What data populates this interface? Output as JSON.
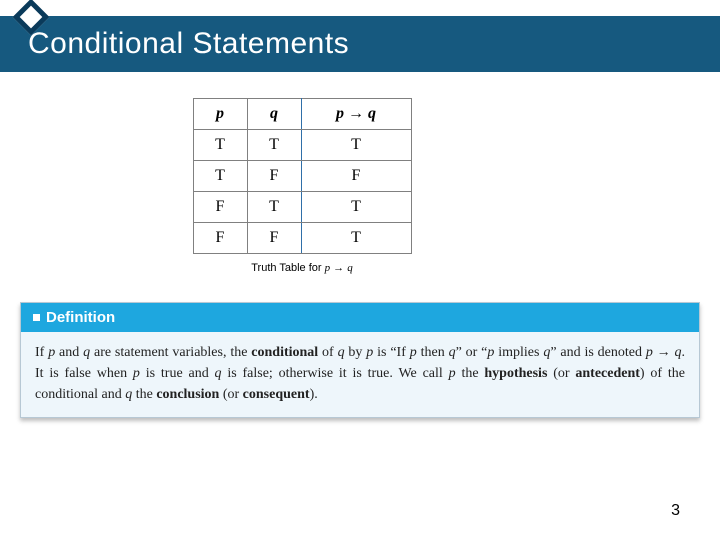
{
  "colors": {
    "banner": "#16597f",
    "diamond_border": "#0a3a5a",
    "def_header": "#1ea7df",
    "def_body_bg": "#eef6fb",
    "table_border_gray": "#808080",
    "table_vline_blue": "#2f6fa8"
  },
  "title": "Conditional Statements",
  "truth_table": {
    "headers": {
      "p": "p",
      "q": "q",
      "pq": "p → q"
    },
    "rows": [
      {
        "p": "T",
        "q": "T",
        "pq": "T"
      },
      {
        "p": "T",
        "q": "F",
        "pq": "F"
      },
      {
        "p": "F",
        "q": "T",
        "pq": "T"
      },
      {
        "p": "F",
        "q": "F",
        "pq": "T"
      }
    ],
    "caption_prefix": "Truth Table for ",
    "caption_expr_p": "p",
    "caption_arrow": " → ",
    "caption_expr_q": "q"
  },
  "definition": {
    "label": "Definition",
    "body_html": "If <span class=\"it\">p</span> and <span class=\"it\">q</span> are statement variables, the <b>conditional</b> of <span class=\"it\">q</span> by <span class=\"it\">p</span> is “If <span class=\"it\">p</span> then <span class=\"it\">q</span>” or “<span class=\"it\">p</span> implies <span class=\"it\">q</span>” and is denoted <span class=\"it\">p</span> → <span class=\"it\">q</span>. It is false when <span class=\"it\">p</span> is true and <span class=\"it\">q</span> is false; otherwise it is true. We call <span class=\"it\">p</span> the <b>hypothesis</b> (or <b>antecedent</b>) of the conditional and <span class=\"it\">q</span> the <b>conclusion</b> (or <b>consequent</b>)."
  },
  "page_number": "3"
}
